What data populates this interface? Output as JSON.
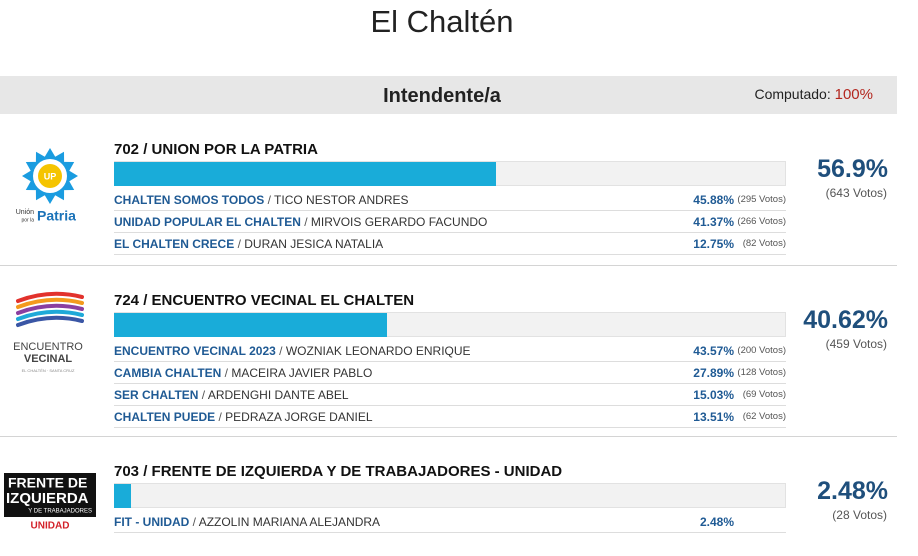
{
  "title": "El Chaltén",
  "header": {
    "title": "Intendente/a",
    "computed_label": "Computado:",
    "computed_value": "100%"
  },
  "separator": "/",
  "lists": [
    {
      "name": "702 / UNION POR LA PATRIA",
      "percent": 56.9,
      "percent_label": "56.9%",
      "votes": "(643 Votos)",
      "logo": [
        "UP",
        "Unión",
        "por la",
        "Patria"
      ],
      "rows": [
        {
          "party": "CHALTEN SOMOS TODOS",
          "candidate": "TICO NESTOR ANDRES",
          "percent": "45.88%",
          "votes": "(295 Votos)"
        },
        {
          "party": "UNIDAD POPULAR EL CHALTEN",
          "candidate": "MIRVOIS GERARDO FACUNDO",
          "percent": "41.37%",
          "votes": "(266 Votos)"
        },
        {
          "party": "EL CHALTEN CRECE",
          "candidate": "DURAN JESICA NATALIA",
          "percent": "12.75%",
          "votes": "(82 Votos)"
        }
      ]
    },
    {
      "name": "724 / ENCUENTRO VECINAL EL CHALTEN",
      "percent": 40.62,
      "percent_label": "40.62%",
      "votes": "(459 Votos)",
      "logo": [
        "ENCUENTRO",
        "VECINAL",
        "EL CHALTÉN · SANTA CRUZ"
      ],
      "rows": [
        {
          "party": "ENCUENTRO VECINAL 2023",
          "candidate": "WOZNIAK LEONARDO ENRIQUE",
          "percent": "43.57%",
          "votes": "(200 Votos)"
        },
        {
          "party": "CAMBIA CHALTEN",
          "candidate": "MACEIRA JAVIER PABLO",
          "percent": "27.89%",
          "votes": "(128 Votos)"
        },
        {
          "party": "SER CHALTEN",
          "candidate": "ARDENGHI DANTE ABEL",
          "percent": "15.03%",
          "votes": "(69 Votos)"
        },
        {
          "party": "CHALTEN PUEDE",
          "candidate": "PEDRAZA JORGE DANIEL",
          "percent": "13.51%",
          "votes": "(62 Votos)"
        }
      ]
    },
    {
      "name": "703 / FRENTE DE IZQUIERDA Y DE TRABAJADORES - UNIDAD",
      "percent": 2.48,
      "percent_label": "2.48%",
      "votes": "(28 Votos)",
      "logo": [
        "FRENTE DE",
        "IZQUIERDA",
        "Y DE TRABAJADORES",
        "UNIDAD"
      ],
      "rows": [
        {
          "party": "FIT - UNIDAD",
          "candidate": "AZZOLIN MARIANA ALEJANDRA",
          "percent": "2.48%",
          "votes": ""
        }
      ]
    }
  ]
}
